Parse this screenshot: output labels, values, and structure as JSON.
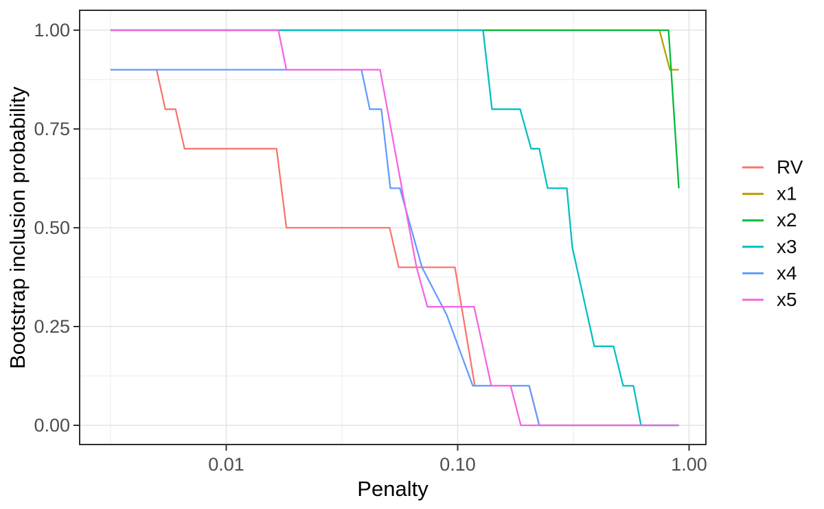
{
  "legend": {
    "position": "right",
    "entries": [
      {
        "label": "RV",
        "color": "#F8766D"
      },
      {
        "label": "x1",
        "color": "#B79F00"
      },
      {
        "label": "x2",
        "color": "#00BA38"
      },
      {
        "label": "x3",
        "color": "#00BFC4"
      },
      {
        "label": "x4",
        "color": "#619CFF"
      },
      {
        "label": "x5",
        "color": "#F564E3"
      }
    ]
  },
  "chart_data": {
    "type": "line",
    "title": "",
    "xlabel": "Penalty",
    "ylabel": "Bootstrap inclusion probability",
    "xscale": "log",
    "xlim": [
      0.0023,
      1.19
    ],
    "ylim": [
      0,
      1
    ],
    "grid": true,
    "legend_position": "right",
    "x_ticks": [
      {
        "value": 0.01,
        "label": "0.01"
      },
      {
        "value": 0.1,
        "label": "0.10"
      },
      {
        "value": 1.0,
        "label": "1.00"
      }
    ],
    "x_minor": [
      0.00316,
      0.0316,
      0.316
    ],
    "y_ticks": [
      {
        "value": 0.0,
        "label": "0.00"
      },
      {
        "value": 0.25,
        "label": "0.25"
      },
      {
        "value": 0.5,
        "label": "0.50"
      },
      {
        "value": 0.75,
        "label": "0.75"
      },
      {
        "value": 1.0,
        "label": "1.00"
      }
    ],
    "y_minor": [
      0.125,
      0.375,
      0.625,
      0.875
    ],
    "series": [
      {
        "name": "RV",
        "color": "#F8766D",
        "points": [
          [
            0.00316,
            0.9
          ],
          [
            0.005,
            0.9
          ],
          [
            0.00545,
            0.8
          ],
          [
            0.00604,
            0.8
          ],
          [
            0.0066,
            0.7
          ],
          [
            0.0165,
            0.7
          ],
          [
            0.0182,
            0.5
          ],
          [
            0.0508,
            0.5
          ],
          [
            0.0556,
            0.4
          ],
          [
            0.0973,
            0.4
          ],
          [
            0.1186,
            0.1
          ],
          [
            0.2036,
            0.1
          ],
          [
            0.2254,
            0.0
          ],
          [
            0.903,
            0.0
          ]
        ]
      },
      {
        "name": "x1",
        "color": "#B79F00",
        "points": [
          [
            0.00316,
            1.0
          ],
          [
            0.745,
            1.0
          ],
          [
            0.826,
            0.9
          ],
          [
            0.903,
            0.9
          ]
        ]
      },
      {
        "name": "x2",
        "color": "#00BA38",
        "points": [
          [
            0.00316,
            1.0
          ],
          [
            0.815,
            1.0
          ],
          [
            0.903,
            0.6
          ]
        ]
      },
      {
        "name": "x3",
        "color": "#00BFC4",
        "points": [
          [
            0.00316,
            1.0
          ],
          [
            0.1288,
            1.0
          ],
          [
            0.1407,
            0.8
          ],
          [
            0.1862,
            0.8
          ],
          [
            0.2077,
            0.7
          ],
          [
            0.2254,
            0.7
          ],
          [
            0.2448,
            0.6
          ],
          [
            0.2963,
            0.6
          ],
          [
            0.3129,
            0.45
          ],
          [
            0.3894,
            0.2
          ],
          [
            0.4715,
            0.2
          ],
          [
            0.519,
            0.1
          ],
          [
            0.5748,
            0.1
          ],
          [
            0.6198,
            0.0
          ],
          [
            0.903,
            0.0
          ]
        ]
      },
      {
        "name": "x4",
        "color": "#619CFF",
        "points": [
          [
            0.00316,
            0.9
          ],
          [
            0.0384,
            0.9
          ],
          [
            0.0417,
            0.8
          ],
          [
            0.0468,
            0.8
          ],
          [
            0.0512,
            0.6
          ],
          [
            0.0563,
            0.6
          ],
          [
            0.0701,
            0.4
          ],
          [
            0.0896,
            0.28
          ],
          [
            0.1162,
            0.1
          ],
          [
            0.2036,
            0.1
          ],
          [
            0.2254,
            0.0
          ],
          [
            0.903,
            0.0
          ]
        ]
      },
      {
        "name": "x5",
        "color": "#F564E3",
        "points": [
          [
            0.00316,
            1.0
          ],
          [
            0.0168,
            1.0
          ],
          [
            0.0182,
            0.9
          ],
          [
            0.0462,
            0.9
          ],
          [
            0.0519,
            0.74
          ],
          [
            0.0595,
            0.55
          ],
          [
            0.0664,
            0.4
          ],
          [
            0.074,
            0.3
          ],
          [
            0.1178,
            0.3
          ],
          [
            0.1398,
            0.1
          ],
          [
            0.1693,
            0.1
          ],
          [
            0.1875,
            0.0
          ],
          [
            0.903,
            0.0
          ]
        ]
      }
    ]
  }
}
